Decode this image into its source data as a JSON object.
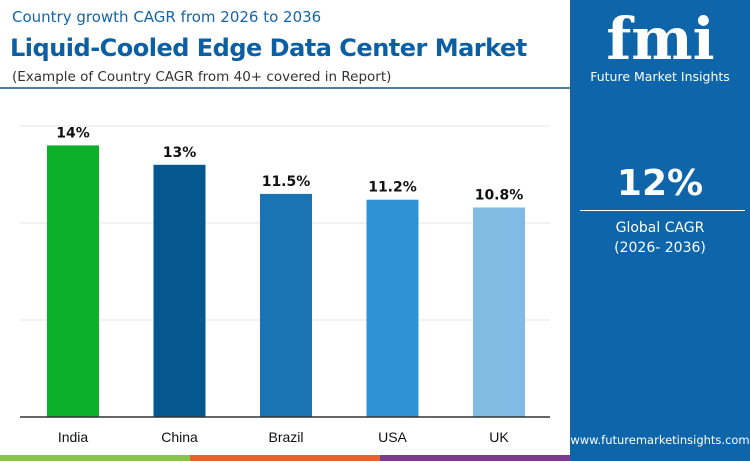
{
  "header": {
    "subtitle": "Country growth CAGR from 2026 to 2036",
    "title": "Liquid-Cooled Edge Data Center Market",
    "note": "(Example of Country CAGR from 40+ covered in Report)"
  },
  "sidebar": {
    "logo_text": "fmi",
    "brand": "Future Market Insights",
    "global_value": "12%",
    "global_label": "Global CAGR",
    "global_period": "(2026- 2036)",
    "url": "www.futuremarketinsights.com"
  },
  "colors": {
    "accent": "#0e65aa",
    "strip": [
      "#8bc34a",
      "#e8602c",
      "#7b3a8c"
    ]
  },
  "chart_data": {
    "type": "bar",
    "categories": [
      "India",
      "China",
      "Brazil",
      "USA",
      "UK"
    ],
    "values": [
      14,
      13,
      11.5,
      11.2,
      10.8
    ],
    "labels": [
      "14%",
      "13%",
      "11.5%",
      "11.2%",
      "10.8%"
    ],
    "colors": [
      "#0db02b",
      "#04578f",
      "#1a73b3",
      "#2e93d6",
      "#7fbbe3"
    ],
    "ylim": [
      0,
      15
    ],
    "grid": true,
    "grid_step": 5
  }
}
